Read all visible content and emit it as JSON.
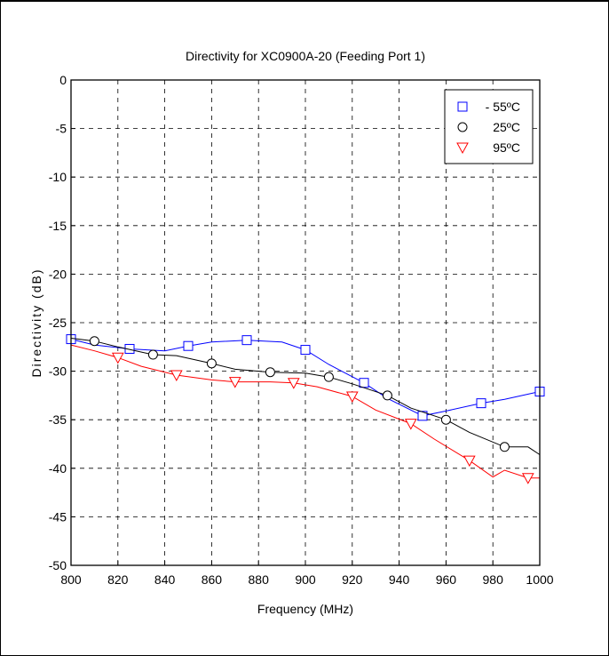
{
  "chart_data": {
    "type": "line",
    "title": "Directivity for XC0900A-20 (Feeding Port 1)",
    "xlabel": "Frequency (MHz)",
    "ylabel": "Directivity (dB)",
    "xlim": [
      800,
      1000
    ],
    "ylim": [
      -50,
      0
    ],
    "xticks": [
      "800",
      "820",
      "840",
      "860",
      "880",
      "900",
      "920",
      "940",
      "960",
      "980",
      "1000"
    ],
    "yticks": [
      "0",
      "-5",
      "-10",
      "-15",
      "-20",
      "-25",
      "-30",
      "-35",
      "-40",
      "-45",
      "-50"
    ],
    "grid": true,
    "legend_position": "top-right",
    "series": [
      {
        "name": "- 55ºC",
        "color": "#0000ff",
        "marker": "square",
        "x": [
          800,
          810,
          825,
          840,
          850,
          860,
          875,
          890,
          900,
          910,
          925,
          935,
          950,
          960,
          975,
          985,
          1000
        ],
        "y": [
          -26.7,
          -27.3,
          -27.7,
          -27.9,
          -27.4,
          -27.0,
          -26.8,
          -27.0,
          -27.8,
          -29.3,
          -31.2,
          -32.8,
          -34.6,
          -34.1,
          -33.3,
          -32.9,
          -32.1
        ],
        "marker_x": [
          800,
          825,
          850,
          875,
          900,
          925,
          950,
          975,
          1000
        ],
        "marker_y": [
          -26.7,
          -27.7,
          -27.4,
          -26.8,
          -27.8,
          -31.2,
          -34.6,
          -33.3,
          -32.1
        ]
      },
      {
        "name": "25ºC",
        "color": "#000000",
        "marker": "circle",
        "x": [
          800,
          810,
          820,
          835,
          845,
          860,
          870,
          885,
          900,
          910,
          920,
          935,
          945,
          960,
          970,
          985,
          995,
          1000
        ],
        "y": [
          -26.6,
          -26.9,
          -27.5,
          -28.3,
          -28.4,
          -29.2,
          -29.8,
          -30.1,
          -30.2,
          -30.6,
          -31.3,
          -32.5,
          -33.8,
          -35.0,
          -36.3,
          -37.8,
          -37.8,
          -38.6
        ],
        "marker_x": [
          810,
          835,
          860,
          885,
          910,
          935,
          960,
          985
        ],
        "marker_y": [
          -26.9,
          -28.3,
          -29.2,
          -30.1,
          -30.6,
          -32.5,
          -35.0,
          -37.8
        ]
      },
      {
        "name": "95ºC",
        "color": "#ff0000",
        "marker": "triangle-down",
        "x": [
          800,
          810,
          820,
          830,
          845,
          860,
          870,
          885,
          895,
          905,
          920,
          930,
          945,
          955,
          970,
          980,
          985,
          995,
          1000
        ],
        "y": [
          -27.3,
          -27.9,
          -28.6,
          -29.5,
          -30.4,
          -30.9,
          -31.1,
          -31.1,
          -31.2,
          -31.6,
          -32.6,
          -34.0,
          -35.4,
          -37.0,
          -39.2,
          -40.9,
          -40.2,
          -41.0,
          -41.0
        ],
        "marker_x": [
          820,
          845,
          870,
          895,
          920,
          945,
          970,
          995
        ],
        "marker_y": [
          -28.6,
          -30.4,
          -31.1,
          -31.2,
          -32.6,
          -35.4,
          -39.2,
          -41.0
        ]
      }
    ]
  }
}
